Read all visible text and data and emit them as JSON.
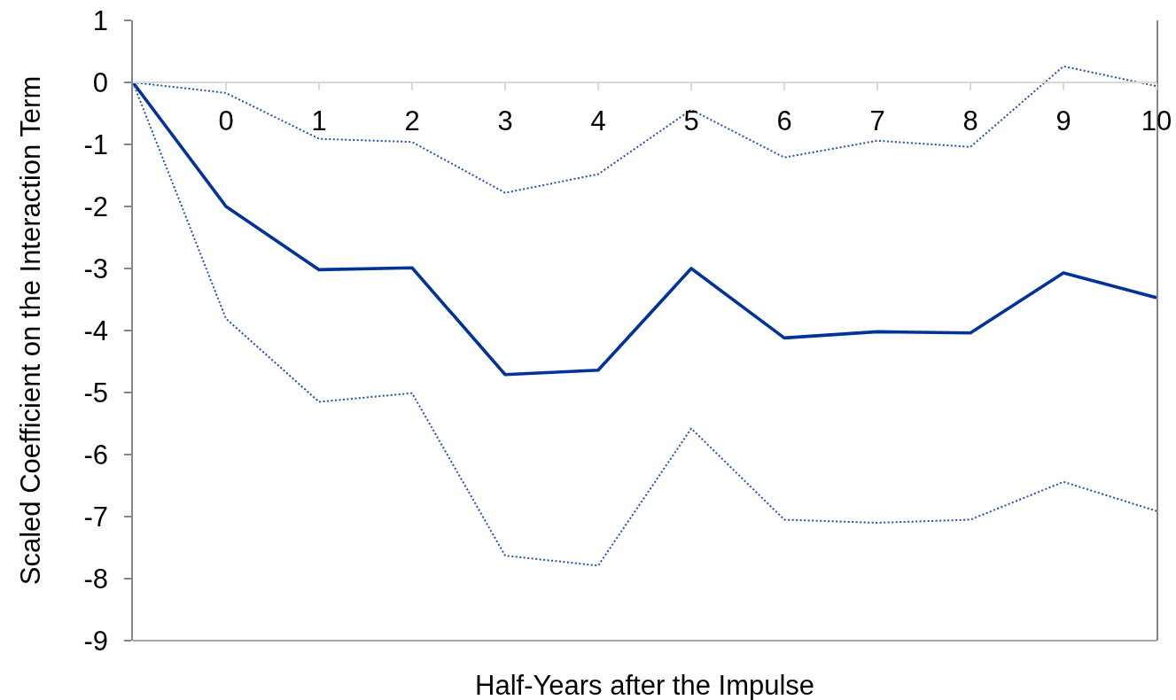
{
  "chart_data": {
    "type": "line",
    "xlabel": "Half-Years after the Impulse",
    "ylabel": "Scaled Coefficient on the Interaction Term",
    "categories": [
      null,
      "0",
      "1",
      "2",
      "3",
      "4",
      "5",
      "6",
      "7",
      "8",
      "9",
      "10"
    ],
    "ylim": [
      -9,
      1
    ],
    "yticks": [
      -9,
      -8,
      -7,
      -6,
      -5,
      -4,
      -3,
      -2,
      -1,
      0,
      1
    ],
    "series": [
      {
        "color": "#003399",
        "line_style": "solid",
        "values": [
          0,
          -2.0,
          -3.02,
          -2.99,
          -4.71,
          -4.64,
          -3.0,
          -4.12,
          -4.02,
          -4.04,
          -3.07,
          -3.47
        ]
      },
      {
        "color": "#2050b0",
        "line_style": "dotted",
        "values": [
          0,
          -0.17,
          -0.91,
          -0.96,
          -1.78,
          -1.48,
          -0.44,
          -1.21,
          -0.94,
          -1.04,
          0.26,
          -0.06
        ]
      },
      {
        "color": "#2050b0",
        "line_style": "dotted",
        "values": [
          0,
          -3.81,
          -5.15,
          -5.01,
          -7.63,
          -7.79,
          -5.58,
          -7.05,
          -7.1,
          -7.05,
          -6.44,
          -6.91
        ]
      }
    ]
  }
}
